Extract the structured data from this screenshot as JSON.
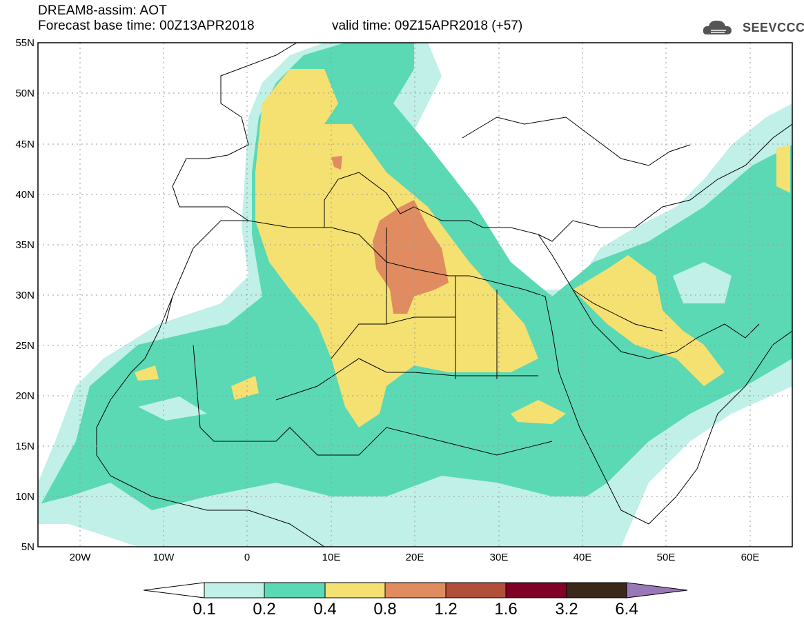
{
  "header": {
    "line1": "DREAM8-assim: AOT",
    "line2": "Forecast base time: 00Z13APR2018",
    "valid": "valid time: 09Z15APR2018 (+57)",
    "logo_text": "SEEVCCC",
    "logo_icon": "cloud-logo-icon"
  },
  "axes": {
    "y_labels": [
      "55N",
      "50N",
      "45N",
      "40N",
      "35N",
      "30N",
      "25N",
      "20N",
      "15N",
      "10N",
      "5N"
    ],
    "x_labels": [
      "20W",
      "10W",
      "0",
      "10E",
      "20E",
      "30E",
      "40E",
      "50E",
      "60E"
    ]
  },
  "colorbar": {
    "labels": [
      "0.1",
      "0.2",
      "0.4",
      "0.8",
      "1.2",
      "1.6",
      "3.2",
      "6.4"
    ],
    "colors": [
      "#ffffff",
      "#c0f0e8",
      "#5ad9b4",
      "#f5e072",
      "#e08c60",
      "#b05038",
      "#800028",
      "#3a2818",
      "#9a78b8"
    ]
  },
  "colors": {
    "c1": "#c0f0e8",
    "c2": "#5ad9b4",
    "c3": "#f5e072",
    "c4": "#e08c60",
    "c5": "#b05038"
  }
}
